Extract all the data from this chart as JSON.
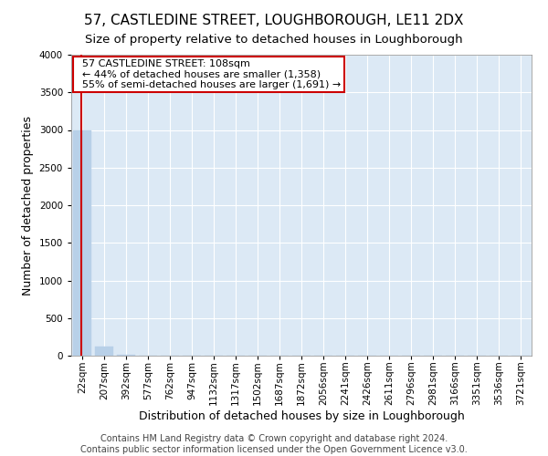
{
  "title": "57, CASTLEDINE STREET, LOUGHBOROUGH, LE11 2DX",
  "subtitle": "Size of property relative to detached houses in Loughborough",
  "xlabel": "Distribution of detached houses by size in Loughborough",
  "ylabel": "Number of detached properties",
  "footer_line1": "Contains HM Land Registry data © Crown copyright and database right 2024.",
  "footer_line2": "Contains public sector information licensed under the Open Government Licence v3.0.",
  "categories": [
    "22sqm",
    "207sqm",
    "392sqm",
    "577sqm",
    "762sqm",
    "947sqm",
    "1132sqm",
    "1317sqm",
    "1502sqm",
    "1687sqm",
    "1872sqm",
    "2056sqm",
    "2241sqm",
    "2426sqm",
    "2611sqm",
    "2796sqm",
    "2981sqm",
    "3166sqm",
    "3351sqm",
    "3536sqm",
    "3721sqm"
  ],
  "bar_heights": [
    3000,
    120,
    8,
    3,
    1,
    1,
    0,
    0,
    0,
    0,
    0,
    0,
    0,
    0,
    0,
    0,
    0,
    0,
    0,
    0,
    0
  ],
  "bar_color": "#b8d0e8",
  "bar_edge_color": "#b8d0e8",
  "annotation_title": "57 CASTLEDINE STREET: 108sqm",
  "annotation_line1": "← 44% of detached houses are smaller (1,358)",
  "annotation_line2": "55% of semi-detached houses are larger (1,691) →",
  "annotation_box_color": "#cc0000",
  "property_line_color": "#cc0000",
  "ylim": [
    0,
    4000
  ],
  "yticks": [
    0,
    500,
    1000,
    1500,
    2000,
    2500,
    3000,
    3500,
    4000
  ],
  "bg_color": "#dce9f5",
  "fig_bg_color": "#ffffff",
  "grid_color": "#ffffff",
  "title_fontsize": 11,
  "subtitle_fontsize": 9.5,
  "xlabel_fontsize": 9,
  "ylabel_fontsize": 9,
  "tick_fontsize": 7.5,
  "annotation_fontsize": 8,
  "footer_fontsize": 7
}
